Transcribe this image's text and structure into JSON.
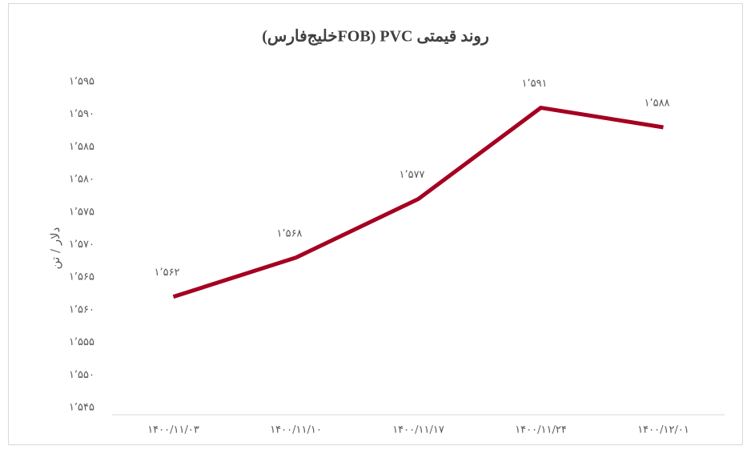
{
  "chart_data": {
    "type": "line",
    "title": "روند قیمتی PVC (FOBخلیج‌فارس)",
    "y_label": "دلار / تن",
    "categories": [
      "۱۴۰۰/۱۱/۰۳",
      "۱۴۰۰/۱۱/۱۰",
      "۱۴۰۰/۱۱/۱۷",
      "۱۴۰۰/۱۱/۲۴",
      "۱۴۰۰/۱۲/۰۱"
    ],
    "values": [
      1562,
      1568,
      1577,
      1591,
      1588
    ],
    "value_labels": [
      "۱٬۵۶۲",
      "۱٬۵۶۸",
      "۱٬۵۷۷",
      "۱٬۵۹۱",
      "۱٬۵۸۸"
    ],
    "color": "#a50021",
    "ylim": [
      1545,
      1595
    ],
    "yticks": [
      {
        "value": 1545,
        "label": "۱٬۵۴۵"
      },
      {
        "value": 1550,
        "label": "۱٬۵۵۰"
      },
      {
        "value": 1555,
        "label": "۱٬۵۵۵"
      },
      {
        "value": 1560,
        "label": "۱٬۵۶۰"
      },
      {
        "value": 1565,
        "label": "۱٬۵۶۵"
      },
      {
        "value": 1570,
        "label": "۱٬۵۷۰"
      },
      {
        "value": 1575,
        "label": "۱٬۵۷۵"
      },
      {
        "value": 1580,
        "label": "۱٬۵۸۰"
      },
      {
        "value": 1585,
        "label": "۱٬۵۸۵"
      },
      {
        "value": 1590,
        "label": "۱٬۵۹۰"
      },
      {
        "value": 1595,
        "label": "۱٬۵۹۵"
      }
    ],
    "grid": false
  }
}
